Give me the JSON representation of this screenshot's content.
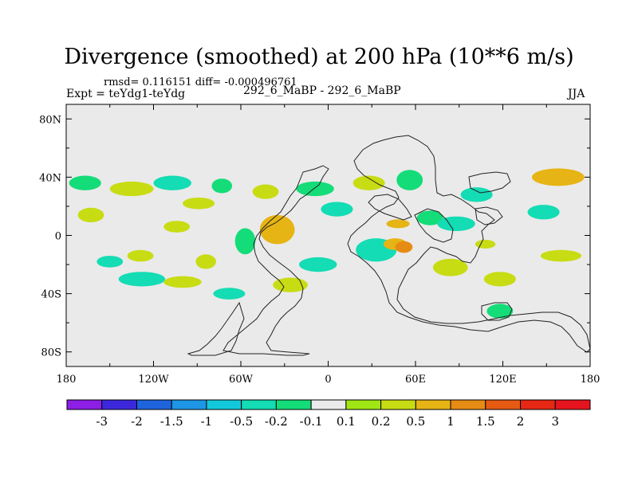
{
  "title": "Divergence (smoothed) at 200 hPa (10**6 m/s)",
  "stats": "rmsd= 0.116151  diff= -0.000496761",
  "experiment": "Expt = teYdg1-teYdg",
  "case": "292_6_MaBP - 292_6_MaBP",
  "season": "JJA",
  "axes": {
    "lat_ticks": [
      {
        "label": "80N",
        "value": 80
      },
      {
        "label": "40N",
        "value": 40
      },
      {
        "label": "0",
        "value": 0
      },
      {
        "label": "40S",
        "value": -40
      },
      {
        "label": "80S",
        "value": -80
      }
    ],
    "lon_ticks": [
      {
        "label": "180",
        "value": -180
      },
      {
        "label": "120W",
        "value": -120
      },
      {
        "label": "60W",
        "value": -60
      },
      {
        "label": "0",
        "value": 0
      },
      {
        "label": "60E",
        "value": 60
      },
      {
        "label": "120E",
        "value": 120
      },
      {
        "label": "180",
        "value": 180
      }
    ],
    "lat_range": [
      -90,
      90
    ],
    "lon_range": [
      -180,
      180
    ]
  },
  "colorbar": {
    "colors": [
      "#8c1ee6",
      "#3c28dc",
      "#1e64dc",
      "#1e96e6",
      "#14c8dc",
      "#14dcb4",
      "#14dc78",
      "#eaeaea",
      "#a0e614",
      "#c8dc14",
      "#e6b414",
      "#e68c14",
      "#e65a14",
      "#e62814",
      "#e6141e"
    ],
    "labels": [
      "-3",
      "-2",
      "-1.5",
      "-1",
      "-0.5",
      "-0.2",
      "-0.1",
      "0.1",
      "0.2",
      "0.5",
      "1",
      "1.5",
      "2",
      "3"
    ]
  },
  "patches": [
    {
      "lon": -167,
      "lat": 36,
      "rx": 11,
      "ry": 5,
      "value": -0.2
    },
    {
      "lon": -163,
      "lat": 14,
      "rx": 9,
      "ry": 5,
      "value": 0.2
    },
    {
      "lon": -150,
      "lat": -18,
      "rx": 9,
      "ry": 4,
      "value": -0.3
    },
    {
      "lon": -135,
      "lat": 32,
      "rx": 15,
      "ry": 5,
      "value": 0.3
    },
    {
      "lon": -129,
      "lat": -14,
      "rx": 9,
      "ry": 4,
      "value": 0.2
    },
    {
      "lon": -128,
      "lat": -30,
      "rx": 16,
      "ry": 5,
      "value": -0.5
    },
    {
      "lon": -107,
      "lat": 36,
      "rx": 13,
      "ry": 5,
      "value": -0.3
    },
    {
      "lon": -104,
      "lat": 6,
      "rx": 9,
      "ry": 4,
      "value": 0.2
    },
    {
      "lon": -100,
      "lat": -32,
      "rx": 13,
      "ry": 4,
      "value": 0.3
    },
    {
      "lon": -89,
      "lat": 22,
      "rx": 11,
      "ry": 4,
      "value": 0.2
    },
    {
      "lon": -84,
      "lat": -18,
      "rx": 7,
      "ry": 5,
      "value": 0.2
    },
    {
      "lon": -73,
      "lat": 34,
      "rx": 7,
      "ry": 5,
      "value": -0.2
    },
    {
      "lon": -68,
      "lat": -40,
      "rx": 11,
      "ry": 4,
      "value": -0.3
    },
    {
      "lon": -57,
      "lat": -4,
      "rx": 7,
      "ry": 9,
      "value": -0.2
    },
    {
      "lon": -43,
      "lat": 30,
      "rx": 9,
      "ry": 5,
      "value": 0.2
    },
    {
      "lon": -35,
      "lat": 4,
      "rx": 12,
      "ry": 10,
      "value": 0.5
    },
    {
      "lon": -26,
      "lat": -34,
      "rx": 12,
      "ry": 5,
      "value": 0.2
    },
    {
      "lon": -7,
      "lat": -20,
      "rx": 13,
      "ry": 5,
      "value": -0.5
    },
    {
      "lon": -9,
      "lat": 32,
      "rx": 13,
      "ry": 5,
      "value": -0.2
    },
    {
      "lon": 6,
      "lat": 18,
      "rx": 11,
      "ry": 5,
      "value": -0.5
    },
    {
      "lon": 28,
      "lat": 36,
      "rx": 11,
      "ry": 5,
      "value": 0.2
    },
    {
      "lon": 33,
      "lat": -10,
      "rx": 14,
      "ry": 8,
      "value": -0.3
    },
    {
      "lon": 46,
      "lat": -6,
      "rx": 8,
      "ry": 4,
      "value": 0.5
    },
    {
      "lon": 48,
      "lat": 8,
      "rx": 8,
      "ry": 3,
      "value": 0.5
    },
    {
      "lon": 52,
      "lat": -8,
      "rx": 6,
      "ry": 4,
      "value": 1
    },
    {
      "lon": 56,
      "lat": 38,
      "rx": 9,
      "ry": 7,
      "value": -0.2
    },
    {
      "lon": 70,
      "lat": 12,
      "rx": 9,
      "ry": 5,
      "value": -0.2
    },
    {
      "lon": 84,
      "lat": -22,
      "rx": 12,
      "ry": 6,
      "value": 0.3
    },
    {
      "lon": 88,
      "lat": 8,
      "rx": 13,
      "ry": 5,
      "value": -0.3
    },
    {
      "lon": 102,
      "lat": 28,
      "rx": 11,
      "ry": 5,
      "value": -0.3
    },
    {
      "lon": 108,
      "lat": -6,
      "rx": 7,
      "ry": 3,
      "value": 0.3
    },
    {
      "lon": 118,
      "lat": -30,
      "rx": 11,
      "ry": 5,
      "value": 0.2
    },
    {
      "lon": 118,
      "lat": -52,
      "rx": 9,
      "ry": 5,
      "value": -0.2
    },
    {
      "lon": 158,
      "lat": 40,
      "rx": 18,
      "ry": 6,
      "value": 0.5
    },
    {
      "lon": 148,
      "lat": 16,
      "rx": 11,
      "ry": 5,
      "value": -0.3
    },
    {
      "lon": 160,
      "lat": -14,
      "rx": 14,
      "ry": 4,
      "value": 0.2
    }
  ]
}
